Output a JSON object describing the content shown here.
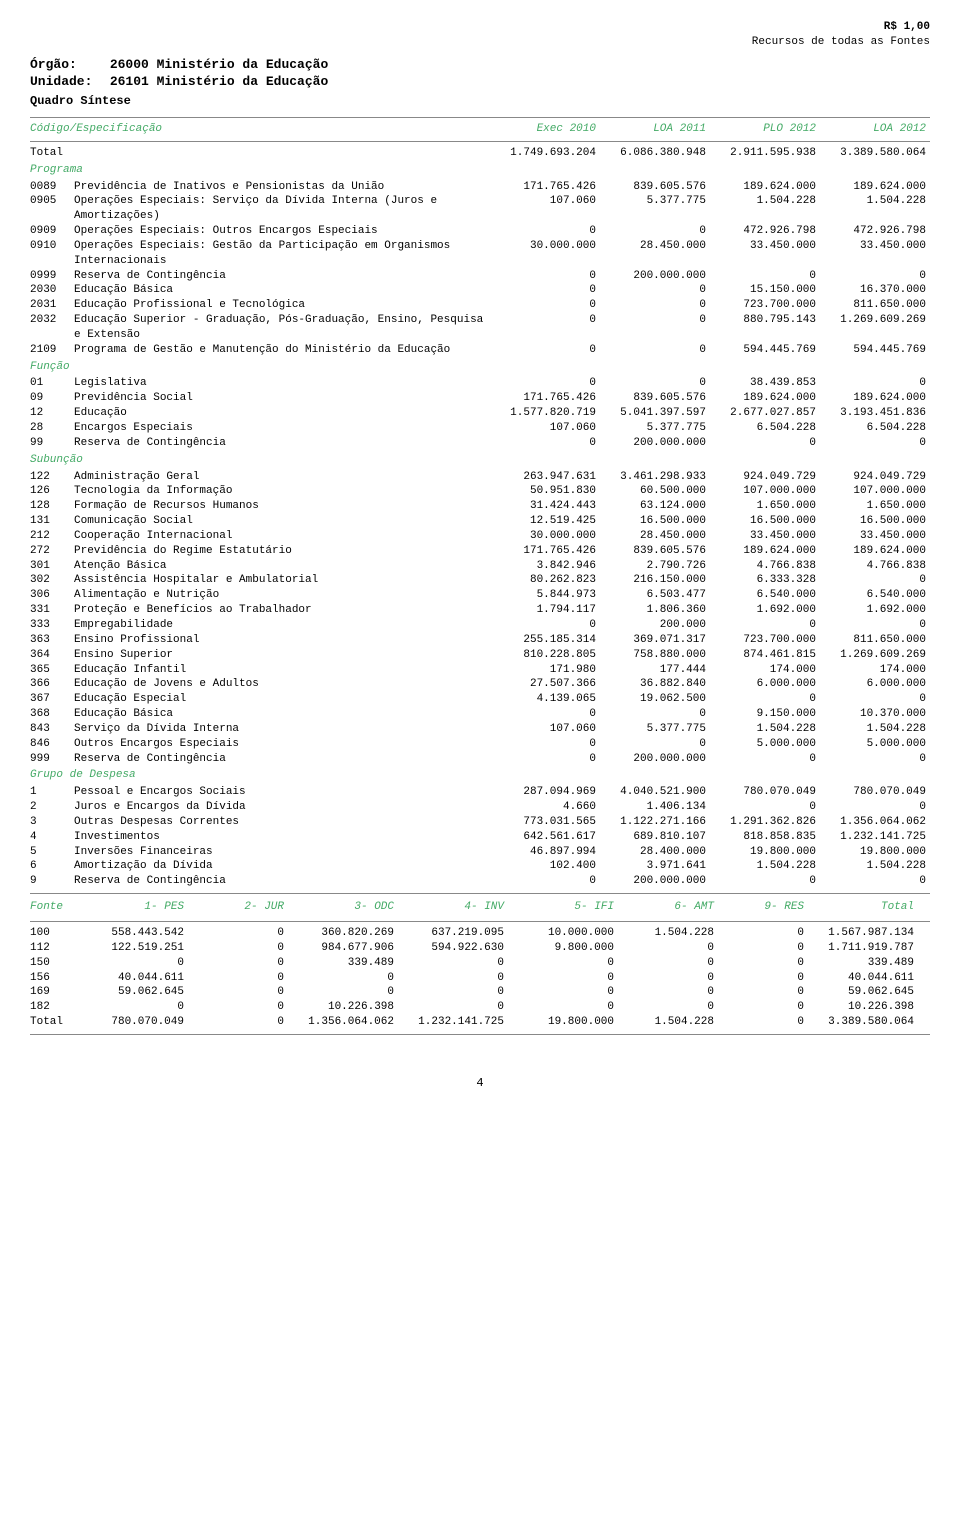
{
  "currency_note": "R$ 1,00",
  "fonte_note": "Recursos de todas as Fontes",
  "orgao_label": "Órgão:",
  "orgao_value": "26000 Ministério da Educação",
  "unidade_label": "Unidade:",
  "unidade_value": "26101 Ministério da Educação",
  "quadro": "Quadro Síntese",
  "columns_label": "Código/Especificação",
  "col1": "Exec 2010",
  "col2": "LOA 2011",
  "col3": "PLO 2012",
  "col4": "LOA 2012",
  "total_label": "Total",
  "total": {
    "c1": "1.749.693.204",
    "c2": "6.086.380.948",
    "c3": "2.911.595.938",
    "c4": "3.389.580.064"
  },
  "sections": {
    "programa": {
      "title": "Programa",
      "rows": [
        {
          "code": "0089",
          "desc": "Previdência de Inativos e Pensionistas da União",
          "c1": "171.765.426",
          "c2": "839.605.576",
          "c3": "189.624.000",
          "c4": "189.624.000"
        },
        {
          "code": "0905",
          "desc": "Operações Especiais: Serviço da Dívida Interna (Juros e Amortizações)",
          "c1": "107.060",
          "c2": "5.377.775",
          "c3": "1.504.228",
          "c4": "1.504.228"
        },
        {
          "code": "0909",
          "desc": "Operações Especiais: Outros Encargos Especiais",
          "c1": "0",
          "c2": "0",
          "c3": "472.926.798",
          "c4": "472.926.798"
        },
        {
          "code": "0910",
          "desc": "Operações Especiais: Gestão da Participação em Organismos Internacionais",
          "c1": "30.000.000",
          "c2": "28.450.000",
          "c3": "33.450.000",
          "c4": "33.450.000"
        },
        {
          "code": "0999",
          "desc": "Reserva de Contingência",
          "c1": "0",
          "c2": "200.000.000",
          "c3": "0",
          "c4": "0"
        },
        {
          "code": "2030",
          "desc": "Educação Básica",
          "c1": "0",
          "c2": "0",
          "c3": "15.150.000",
          "c4": "16.370.000"
        },
        {
          "code": "2031",
          "desc": "Educação Profissional e Tecnológica",
          "c1": "0",
          "c2": "0",
          "c3": "723.700.000",
          "c4": "811.650.000"
        },
        {
          "code": "2032",
          "desc": "Educação Superior - Graduação, Pós-Graduação, Ensino, Pesquisa e Extensão",
          "c1": "0",
          "c2": "0",
          "c3": "880.795.143",
          "c4": "1.269.609.269"
        },
        {
          "code": "2109",
          "desc": "Programa de Gestão e Manutenção do Ministério da Educação",
          "c1": "0",
          "c2": "0",
          "c3": "594.445.769",
          "c4": "594.445.769"
        }
      ]
    },
    "funcao": {
      "title": "Função",
      "rows": [
        {
          "code": "01",
          "desc": "Legislativa",
          "c1": "0",
          "c2": "0",
          "c3": "38.439.853",
          "c4": "0"
        },
        {
          "code": "09",
          "desc": "Previdência Social",
          "c1": "171.765.426",
          "c2": "839.605.576",
          "c3": "189.624.000",
          "c4": "189.624.000"
        },
        {
          "code": "12",
          "desc": "Educação",
          "c1": "1.577.820.719",
          "c2": "5.041.397.597",
          "c3": "2.677.027.857",
          "c4": "3.193.451.836"
        },
        {
          "code": "28",
          "desc": "Encargos Especiais",
          "c1": "107.060",
          "c2": "5.377.775",
          "c3": "6.504.228",
          "c4": "6.504.228"
        },
        {
          "code": "99",
          "desc": "Reserva de Contingência",
          "c1": "0",
          "c2": "200.000.000",
          "c3": "0",
          "c4": "0"
        }
      ]
    },
    "subuncao": {
      "title": "Subunção",
      "rows": [
        {
          "code": "122",
          "desc": "Administração Geral",
          "c1": "263.947.631",
          "c2": "3.461.298.933",
          "c3": "924.049.729",
          "c4": "924.049.729"
        },
        {
          "code": "126",
          "desc": "Tecnologia da Informação",
          "c1": "50.951.830",
          "c2": "60.500.000",
          "c3": "107.000.000",
          "c4": "107.000.000"
        },
        {
          "code": "128",
          "desc": "Formação de Recursos Humanos",
          "c1": "31.424.443",
          "c2": "63.124.000",
          "c3": "1.650.000",
          "c4": "1.650.000"
        },
        {
          "code": "131",
          "desc": "Comunicação Social",
          "c1": "12.519.425",
          "c2": "16.500.000",
          "c3": "16.500.000",
          "c4": "16.500.000"
        },
        {
          "code": "212",
          "desc": "Cooperação Internacional",
          "c1": "30.000.000",
          "c2": "28.450.000",
          "c3": "33.450.000",
          "c4": "33.450.000"
        },
        {
          "code": "272",
          "desc": "Previdência do Regime Estatutário",
          "c1": "171.765.426",
          "c2": "839.605.576",
          "c3": "189.624.000",
          "c4": "189.624.000"
        },
        {
          "code": "301",
          "desc": "Atenção Básica",
          "c1": "3.842.946",
          "c2": "2.790.726",
          "c3": "4.766.838",
          "c4": "4.766.838"
        },
        {
          "code": "302",
          "desc": "Assistência Hospitalar e Ambulatorial",
          "c1": "80.262.823",
          "c2": "216.150.000",
          "c3": "6.333.328",
          "c4": "0"
        },
        {
          "code": "306",
          "desc": "Alimentação e Nutrição",
          "c1": "5.844.973",
          "c2": "6.503.477",
          "c3": "6.540.000",
          "c4": "6.540.000"
        },
        {
          "code": "331",
          "desc": "Proteção e Benefícios ao Trabalhador",
          "c1": "1.794.117",
          "c2": "1.806.360",
          "c3": "1.692.000",
          "c4": "1.692.000"
        },
        {
          "code": "333",
          "desc": "Empregabilidade",
          "c1": "0",
          "c2": "200.000",
          "c3": "0",
          "c4": "0"
        },
        {
          "code": "363",
          "desc": "Ensino Profissional",
          "c1": "255.185.314",
          "c2": "369.071.317",
          "c3": "723.700.000",
          "c4": "811.650.000"
        },
        {
          "code": "364",
          "desc": "Ensino Superior",
          "c1": "810.228.805",
          "c2": "758.880.000",
          "c3": "874.461.815",
          "c4": "1.269.609.269"
        },
        {
          "code": "365",
          "desc": "Educação Infantil",
          "c1": "171.980",
          "c2": "177.444",
          "c3": "174.000",
          "c4": "174.000"
        },
        {
          "code": "366",
          "desc": "Educação de Jovens e Adultos",
          "c1": "27.507.366",
          "c2": "36.882.840",
          "c3": "6.000.000",
          "c4": "6.000.000"
        },
        {
          "code": "367",
          "desc": "Educação Especial",
          "c1": "4.139.065",
          "c2": "19.062.500",
          "c3": "0",
          "c4": "0"
        },
        {
          "code": "368",
          "desc": "Educação Básica",
          "c1": "0",
          "c2": "0",
          "c3": "9.150.000",
          "c4": "10.370.000"
        },
        {
          "code": "843",
          "desc": "Serviço da Dívida Interna",
          "c1": "107.060",
          "c2": "5.377.775",
          "c3": "1.504.228",
          "c4": "1.504.228"
        },
        {
          "code": "846",
          "desc": "Outros Encargos Especiais",
          "c1": "0",
          "c2": "0",
          "c3": "5.000.000",
          "c4": "5.000.000"
        },
        {
          "code": "999",
          "desc": "Reserva de Contingência",
          "c1": "0",
          "c2": "200.000.000",
          "c3": "0",
          "c4": "0"
        }
      ]
    },
    "grupo": {
      "title": "Grupo de Despesa",
      "rows": [
        {
          "code": "1",
          "desc": "Pessoal e Encargos Sociais",
          "c1": "287.094.969",
          "c2": "4.040.521.900",
          "c3": "780.070.049",
          "c4": "780.070.049"
        },
        {
          "code": "2",
          "desc": "Juros e Encargos da Dívida",
          "c1": "4.660",
          "c2": "1.406.134",
          "c3": "0",
          "c4": "0"
        },
        {
          "code": "3",
          "desc": "Outras Despesas Correntes",
          "c1": "773.031.565",
          "c2": "1.122.271.166",
          "c3": "1.291.362.826",
          "c4": "1.356.064.062"
        },
        {
          "code": "4",
          "desc": "Investimentos",
          "c1": "642.561.617",
          "c2": "689.810.107",
          "c3": "818.858.835",
          "c4": "1.232.141.725"
        },
        {
          "code": "5",
          "desc": "Inversões Financeiras",
          "c1": "46.897.994",
          "c2": "28.400.000",
          "c3": "19.800.000",
          "c4": "19.800.000"
        },
        {
          "code": "6",
          "desc": "Amortização da Dívida",
          "c1": "102.400",
          "c2": "3.971.641",
          "c3": "1.504.228",
          "c4": "1.504.228"
        },
        {
          "code": "9",
          "desc": "Reserva de Contingência",
          "c1": "0",
          "c2": "200.000.000",
          "c3": "0",
          "c4": "0"
        }
      ]
    }
  },
  "fonte": {
    "label": "Fonte",
    "headers": [
      "1- PES",
      "2- JUR",
      "3- ODC",
      "4- INV",
      "5- IFI",
      "6- AMT",
      "9- RES",
      "Total"
    ],
    "rows": [
      {
        "code": "100",
        "v": [
          "558.443.542",
          "0",
          "360.820.269",
          "637.219.095",
          "10.000.000",
          "1.504.228",
          "0",
          "1.567.987.134"
        ]
      },
      {
        "code": "112",
        "v": [
          "122.519.251",
          "0",
          "984.677.906",
          "594.922.630",
          "9.800.000",
          "0",
          "0",
          "1.711.919.787"
        ]
      },
      {
        "code": "150",
        "v": [
          "0",
          "0",
          "339.489",
          "0",
          "0",
          "0",
          "0",
          "339.489"
        ]
      },
      {
        "code": "156",
        "v": [
          "40.044.611",
          "0",
          "0",
          "0",
          "0",
          "0",
          "0",
          "40.044.611"
        ]
      },
      {
        "code": "169",
        "v": [
          "59.062.645",
          "0",
          "0",
          "0",
          "0",
          "0",
          "0",
          "59.062.645"
        ]
      },
      {
        "code": "182",
        "v": [
          "0",
          "0",
          "10.226.398",
          "0",
          "0",
          "0",
          "0",
          "10.226.398"
        ]
      }
    ],
    "total_label": "Total",
    "total": [
      "780.070.049",
      "0",
      "1.356.064.062",
      "1.232.141.725",
      "19.800.000",
      "1.504.228",
      "0",
      "3.389.580.064"
    ]
  },
  "page_number": "4",
  "colors": {
    "accent": "#4a6",
    "rule": "#888",
    "text": "#000",
    "bg": "#fff"
  }
}
